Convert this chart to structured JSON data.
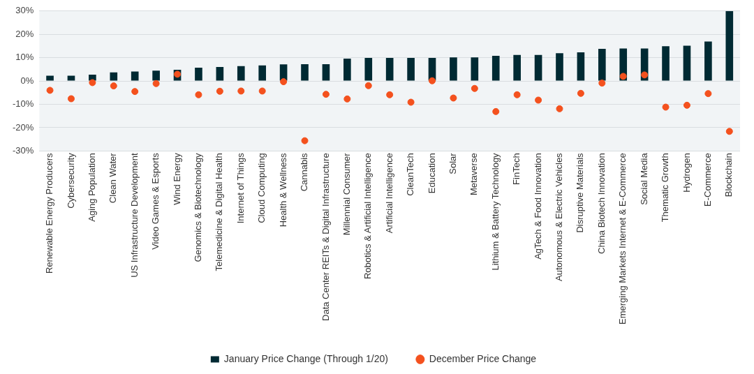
{
  "chart_data": {
    "type": "bar",
    "categories": [
      "Renewable Energy Producers",
      "Cybersecurity",
      "Aging Population",
      "Clean Water",
      "US Infrastructure Development",
      "Video Games & Esports",
      "Wind Energy",
      "Genomics & Biotechnology",
      "Telemedicine & Digital Health",
      "Internet of Things",
      "Cloud Computing",
      "Health & Wellness",
      "Cannabis",
      "Data Center REITs & Digital Infrastructure",
      "Millennial Consumer",
      "Robotics & Artificial Intelligence",
      "Artificial Intelligence",
      "CleanTech",
      "Education",
      "Solar",
      "Metaverse",
      "Lithium & Battery Technology",
      "FinTech",
      "AgTech & Food Innovation",
      "Autonomous & Electric Vehicles",
      "Disruptive Materials",
      "China Biotech Innovation",
      "Emerging Markets Internet & E-Commerce",
      "Social Media",
      "Thematic Growth",
      "Hydrogen",
      "E-Commerce",
      "Blockchain"
    ],
    "series": [
      {
        "name": "January Price Change (Through 1/20)",
        "color": "#002a33",
        "values": [
          2.3,
          2.3,
          2.7,
          3.7,
          4.1,
          4.4,
          4.8,
          5.7,
          6.0,
          6.4,
          6.7,
          7.1,
          7.2,
          7.2,
          9.6,
          9.9,
          9.9,
          9.9,
          9.9,
          10.1,
          10.1,
          10.8,
          11.2,
          11.2,
          11.9,
          12.3,
          13.8,
          13.9,
          13.9,
          14.9,
          15.1,
          16.9,
          30
        ]
      },
      {
        "name": "December Price Change",
        "type": "scatter",
        "marker": "circle",
        "color": "#f4511e",
        "values": [
          -4.0,
          -7.6,
          -0.7,
          -2.1,
          -4.5,
          -1.1,
          2.9,
          -5.9,
          -4.4,
          -4.3,
          -4.3,
          -0.3,
          -25.6,
          -5.7,
          -7.7,
          -2.0,
          -5.9,
          -9.1,
          0.1,
          -7.3,
          -3.2,
          -13.1,
          -5.9,
          -8.2,
          -11.9,
          -5.3,
          -0.9,
          2.0,
          2.6,
          -11.2,
          -10.4,
          -5.4,
          -21.6
        ]
      }
    ],
    "ylim": [
      -30,
      30
    ],
    "yticks": [
      {
        "value": -30,
        "label": "-30%"
      },
      {
        "value": -20,
        "label": "-20%"
      },
      {
        "value": -10,
        "label": "-10%"
      },
      {
        "value": 0,
        "label": "0%"
      },
      {
        "value": 10,
        "label": "10%"
      },
      {
        "value": 20,
        "label": "20%"
      },
      {
        "value": 30,
        "label": "30%"
      }
    ],
    "grid": "y",
    "legend": "bottom"
  }
}
